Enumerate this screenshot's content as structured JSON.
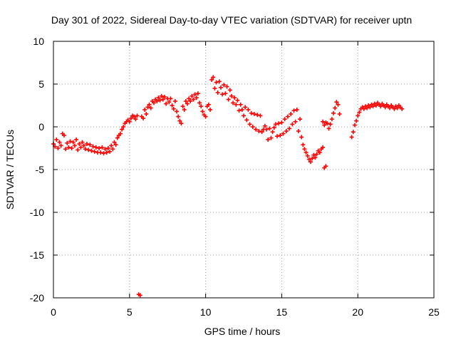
{
  "chart_data": {
    "type": "scatter",
    "title": "Day 301 of 2022, Sidereal Day-to-day VTEC variation (SDTVAR) for receiver uptn",
    "xlabel": "GPS time / hours",
    "ylabel": "SDTVAR / TECUs",
    "xlim": [
      0,
      25
    ],
    "ylim": [
      -20,
      10
    ],
    "xticks": [
      0,
      5,
      10,
      15,
      20,
      25
    ],
    "yticks": [
      -20,
      -15,
      -10,
      -5,
      0,
      5,
      10
    ],
    "grid": true,
    "marker": "plus",
    "color": "#ff0000",
    "series": [
      {
        "name": "SDTVAR",
        "points": [
          [
            0.0,
            -2.0
          ],
          [
            0.1,
            -2.3
          ],
          [
            0.2,
            -1.5
          ],
          [
            0.3,
            -2.5
          ],
          [
            0.4,
            -1.8
          ],
          [
            0.5,
            -2.2
          ],
          [
            0.6,
            -0.8
          ],
          [
            0.7,
            -1.0
          ],
          [
            0.8,
            -2.6
          ],
          [
            0.9,
            -1.9
          ],
          [
            1.0,
            -2.4
          ],
          [
            1.1,
            -1.7
          ],
          [
            1.2,
            -2.5
          ],
          [
            1.3,
            -1.8
          ],
          [
            1.4,
            -2.2
          ],
          [
            1.5,
            -1.5
          ],
          [
            1.6,
            -2.7
          ],
          [
            1.7,
            -2.0
          ],
          [
            1.8,
            -2.4
          ],
          [
            1.9,
            -1.8
          ],
          [
            2.0,
            -2.2
          ],
          [
            2.1,
            -2.6
          ],
          [
            2.2,
            -2.0
          ],
          [
            2.3,
            -2.7
          ],
          [
            2.4,
            -2.1
          ],
          [
            2.5,
            -2.8
          ],
          [
            2.6,
            -2.3
          ],
          [
            2.7,
            -2.9
          ],
          [
            2.8,
            -2.4
          ],
          [
            2.9,
            -3.0
          ],
          [
            3.0,
            -2.5
          ],
          [
            3.1,
            -3.0
          ],
          [
            3.2,
            -2.4
          ],
          [
            3.3,
            -3.1
          ],
          [
            3.4,
            -2.6
          ],
          [
            3.5,
            -3.0
          ],
          [
            3.6,
            -2.5
          ],
          [
            3.7,
            -2.9
          ],
          [
            3.8,
            -2.2
          ],
          [
            3.9,
            -2.6
          ],
          [
            4.0,
            -1.8
          ],
          [
            4.1,
            -2.1
          ],
          [
            4.2,
            -1.3
          ],
          [
            4.3,
            -1.0
          ],
          [
            4.4,
            -0.8
          ],
          [
            4.5,
            -0.3
          ],
          [
            4.6,
            0.0
          ],
          [
            4.7,
            0.4
          ],
          [
            4.8,
            0.6
          ],
          [
            4.9,
            0.8
          ],
          [
            5.0,
            0.6
          ],
          [
            5.1,
            1.0
          ],
          [
            5.2,
            1.3
          ],
          [
            5.3,
            1.2
          ],
          [
            5.4,
            0.9
          ],
          [
            5.5,
            1.3
          ],
          [
            5.6,
            -19.6
          ],
          [
            5.7,
            -19.7
          ],
          [
            5.8,
            1.2
          ],
          [
            5.9,
            1.0
          ],
          [
            6.0,
            2.0
          ],
          [
            6.1,
            1.5
          ],
          [
            6.2,
            2.3
          ],
          [
            6.3,
            2.6
          ],
          [
            6.4,
            2.2
          ],
          [
            6.5,
            3.0
          ],
          [
            6.6,
            2.8
          ],
          [
            6.7,
            3.2
          ],
          [
            6.8,
            3.0
          ],
          [
            6.9,
            3.4
          ],
          [
            7.0,
            3.1
          ],
          [
            7.1,
            3.6
          ],
          [
            7.2,
            3.2
          ],
          [
            7.3,
            3.5
          ],
          [
            7.4,
            2.7
          ],
          [
            7.5,
            3.3
          ],
          [
            7.6,
            2.9
          ],
          [
            7.7,
            3.3
          ],
          [
            7.8,
            2.5
          ],
          [
            7.9,
            2.1
          ],
          [
            8.0,
            3.0
          ],
          [
            8.1,
            1.8
          ],
          [
            8.2,
            1.2
          ],
          [
            8.3,
            0.7
          ],
          [
            8.4,
            0.4
          ],
          [
            8.5,
            2.4
          ],
          [
            8.6,
            2.0
          ],
          [
            8.7,
            3.0
          ],
          [
            8.8,
            2.7
          ],
          [
            8.9,
            3.3
          ],
          [
            9.0,
            3.0
          ],
          [
            9.1,
            3.6
          ],
          [
            9.2,
            3.2
          ],
          [
            9.3,
            3.8
          ],
          [
            9.4,
            3.4
          ],
          [
            9.5,
            3.9
          ],
          [
            9.6,
            2.8
          ],
          [
            9.7,
            2.4
          ],
          [
            9.8,
            1.8
          ],
          [
            9.9,
            1.4
          ],
          [
            10.0,
            1.2
          ],
          [
            10.1,
            2.4
          ],
          [
            10.2,
            2.6
          ],
          [
            10.3,
            2.0
          ],
          [
            10.4,
            5.5
          ],
          [
            10.5,
            5.8
          ],
          [
            10.6,
            4.5
          ],
          [
            10.7,
            5.2
          ],
          [
            10.8,
            4.0
          ],
          [
            10.9,
            5.3
          ],
          [
            11.0,
            4.6
          ],
          [
            11.1,
            3.8
          ],
          [
            11.2,
            4.9
          ],
          [
            11.3,
            3.9
          ],
          [
            11.4,
            4.7
          ],
          [
            11.5,
            3.2
          ],
          [
            11.6,
            4.3
          ],
          [
            11.7,
            3.6
          ],
          [
            11.8,
            2.8
          ],
          [
            11.9,
            3.4
          ],
          [
            12.0,
            2.6
          ],
          [
            12.1,
            3.1
          ],
          [
            12.2,
            1.9
          ],
          [
            12.3,
            2.6
          ],
          [
            12.4,
            2.0
          ],
          [
            12.5,
            1.3
          ],
          [
            12.6,
            2.3
          ],
          [
            12.7,
            0.8
          ],
          [
            12.8,
            2.0
          ],
          [
            12.9,
            0.3
          ],
          [
            13.0,
            1.6
          ],
          [
            13.1,
            0.0
          ],
          [
            13.2,
            1.5
          ],
          [
            13.3,
            -0.3
          ],
          [
            13.4,
            1.4
          ],
          [
            13.5,
            -0.5
          ],
          [
            13.6,
            1.3
          ],
          [
            13.7,
            -0.6
          ],
          [
            13.8,
            -0.3
          ],
          [
            13.9,
            0.1
          ],
          [
            14.0,
            -0.3
          ],
          [
            14.1,
            -1.5
          ],
          [
            14.2,
            -0.2
          ],
          [
            14.3,
            -1.3
          ],
          [
            14.4,
            -0.6
          ],
          [
            14.5,
            -0.1
          ],
          [
            14.6,
            0.3
          ],
          [
            14.7,
            -1.1
          ],
          [
            14.8,
            0.4
          ],
          [
            14.9,
            -1.0
          ],
          [
            15.0,
            0.5
          ],
          [
            15.1,
            -0.8
          ],
          [
            15.2,
            0.9
          ],
          [
            15.3,
            -0.5
          ],
          [
            15.4,
            1.2
          ],
          [
            15.5,
            -0.2
          ],
          [
            15.6,
            1.5
          ],
          [
            15.7,
            0.3
          ],
          [
            15.8,
            1.9
          ],
          [
            15.9,
            0.6
          ],
          [
            16.0,
            2.0
          ],
          [
            16.1,
            -0.5
          ],
          [
            16.2,
            0.9
          ],
          [
            16.3,
            -1.2
          ],
          [
            16.4,
            -2.1
          ],
          [
            16.5,
            -2.6
          ],
          [
            16.6,
            -3.0
          ],
          [
            16.7,
            -3.4
          ],
          [
            16.8,
            -3.8
          ],
          [
            16.9,
            -4.1
          ],
          [
            17.0,
            -3.7
          ],
          [
            17.1,
            -3.3
          ],
          [
            17.2,
            -3.6
          ],
          [
            17.3,
            -3.2
          ],
          [
            17.4,
            -2.8
          ],
          [
            17.5,
            -3.0
          ],
          [
            17.6,
            -2.6
          ],
          [
            17.7,
            -2.4
          ],
          [
            17.8,
            -4.8
          ],
          [
            17.9,
            -4.6
          ],
          [
            17.7,
            0.6
          ],
          [
            17.8,
            0.2
          ],
          [
            17.9,
            0.5
          ],
          [
            18.0,
            0.4
          ],
          [
            18.1,
            -0.2
          ],
          [
            18.2,
            0.3
          ],
          [
            18.3,
            0.9
          ],
          [
            18.4,
            1.6
          ],
          [
            18.5,
            2.2
          ],
          [
            18.6,
            2.9
          ],
          [
            18.7,
            2.6
          ],
          [
            18.8,
            1.5
          ],
          [
            19.6,
            -1.2
          ],
          [
            19.7,
            -0.6
          ],
          [
            19.8,
            0.2
          ],
          [
            19.9,
            0.7
          ],
          [
            20.0,
            1.3
          ],
          [
            20.1,
            1.7
          ],
          [
            20.2,
            2.1
          ],
          [
            20.3,
            2.3
          ],
          [
            20.4,
            2.1
          ],
          [
            20.5,
            2.4
          ],
          [
            20.6,
            2.2
          ],
          [
            20.7,
            2.5
          ],
          [
            20.8,
            2.3
          ],
          [
            20.9,
            2.6
          ],
          [
            21.0,
            2.4
          ],
          [
            21.1,
            2.7
          ],
          [
            21.2,
            2.5
          ],
          [
            21.3,
            2.8
          ],
          [
            21.4,
            2.6
          ],
          [
            21.5,
            2.4
          ],
          [
            21.6,
            2.7
          ],
          [
            21.7,
            2.5
          ],
          [
            21.8,
            2.3
          ],
          [
            21.9,
            2.6
          ],
          [
            22.0,
            2.4
          ],
          [
            22.1,
            2.2
          ],
          [
            22.2,
            2.5
          ],
          [
            22.3,
            2.3
          ],
          [
            22.4,
            2.1
          ],
          [
            22.5,
            2.4
          ],
          [
            22.6,
            2.2
          ],
          [
            22.7,
            2.5
          ],
          [
            22.8,
            2.3
          ],
          [
            22.9,
            2.1
          ]
        ]
      }
    ]
  }
}
